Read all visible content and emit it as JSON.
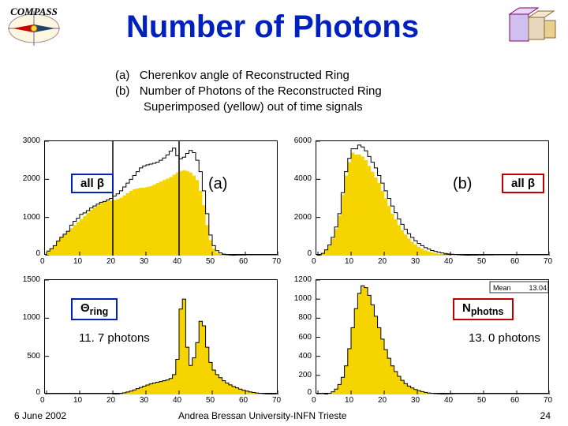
{
  "title": "Number of Photons",
  "logo_text": "COMPASS",
  "description": {
    "a": "Cherenkov angle of Reconstructed Ring",
    "b": "Number of Photons of the Reconstructed Ring",
    "c": "Superimposed (yellow) out of time signals"
  },
  "labels": {
    "all_beta_left": "all β",
    "all_beta_right": "all β",
    "panel_a": "(a)",
    "panel_b": "(b)",
    "theta_ring": "Θ<sub>ring</sub>",
    "n_photns": "N<sub>photns</sub>",
    "photons_left": "11. 7 photons",
    "photons_right": "13. 0 photons",
    "statbox_mean_label": "Mean",
    "statbox_mean_value": "13.04"
  },
  "footer": {
    "date": "6 June 2002",
    "author": "Andrea Bressan University-INFN Trieste",
    "page": "24"
  },
  "colors": {
    "title": "#0020c0",
    "box_blue": "#0020c0",
    "box_red": "#c00000",
    "hist_fill": "#f5d400",
    "hist_line": "#000000",
    "axis": "#000000",
    "bg": "#ffffff"
  },
  "hist_a_top": {
    "type": "histogram",
    "xlim": [
      0,
      70
    ],
    "ylim": [
      0,
      3000
    ],
    "xtick_step": 10,
    "ytick_step": 1000,
    "yellow_vals": [
      120,
      180,
      260,
      380,
      480,
      560,
      640,
      720,
      800,
      880,
      960,
      1040,
      1120,
      1200,
      1260,
      1320,
      1380,
      1420,
      1440,
      1440,
      1460,
      1480,
      1520,
      1580,
      1640,
      1700,
      1740,
      1760,
      1780,
      1780,
      1800,
      1820,
      1860,
      1900,
      1940,
      1980,
      2020,
      2060,
      2120,
      2180,
      2220,
      2240,
      2220,
      2180,
      2100,
      1980,
      1700,
      1320,
      800,
      400,
      180,
      80,
      40,
      20,
      10,
      6,
      4,
      2,
      1,
      0,
      0,
      0,
      0,
      0,
      0,
      0,
      0,
      0,
      0,
      0
    ],
    "line_vals": [
      120,
      180,
      260,
      380,
      480,
      560,
      640,
      800,
      900,
      980,
      1080,
      1120,
      1180,
      1250,
      1300,
      1350,
      1400,
      1420,
      1460,
      1500,
      1560,
      1620,
      1700,
      1800,
      1900,
      2000,
      2100,
      2200,
      2300,
      2350,
      2380,
      2400,
      2420,
      2450,
      2500,
      2560,
      2640,
      2740,
      2820,
      2620,
      2540,
      2580,
      2680,
      2760,
      2700,
      2500,
      2200,
      1700,
      1100,
      540,
      260,
      130,
      70,
      40,
      24,
      16,
      10,
      6,
      4,
      2,
      1,
      0,
      0,
      0,
      0,
      0,
      0,
      0,
      0,
      0
    ],
    "vlines": [
      20,
      40
    ]
  },
  "hist_b_top": {
    "type": "histogram",
    "xlim": [
      0,
      70
    ],
    "ylim": [
      0,
      6000
    ],
    "xtick_step": 10,
    "ytick_step": 2000,
    "yellow_vals": [
      40,
      120,
      280,
      520,
      900,
      1400,
      2100,
      3200,
      4200,
      4900,
      5400,
      5300,
      5300,
      5200,
      5000,
      4700,
      4400,
      4100,
      3800,
      3400,
      3000,
      2600,
      2200,
      1900,
      1600,
      1340,
      1100,
      900,
      720,
      580,
      460,
      360,
      280,
      220,
      170,
      130,
      100,
      76,
      58,
      44,
      34,
      26,
      20,
      15,
      11,
      8,
      6,
      4,
      3,
      2,
      1,
      1,
      0,
      0,
      0,
      0,
      0,
      0,
      0,
      0,
      0,
      0,
      0,
      0,
      0,
      0,
      0,
      0,
      0,
      0
    ],
    "line_vals": [
      40,
      120,
      300,
      560,
      960,
      1500,
      2200,
      3300,
      4400,
      5100,
      5600,
      5600,
      5800,
      5700,
      5500,
      5200,
      4900,
      4600,
      4200,
      3800,
      3400,
      3000,
      2600,
      2250,
      1920,
      1640,
      1380,
      1150,
      950,
      780,
      640,
      520,
      420,
      340,
      270,
      220,
      175,
      140,
      112,
      90,
      72,
      58,
      46,
      36,
      28,
      22,
      17,
      13,
      10,
      8,
      6,
      4,
      3,
      2,
      1,
      1,
      0,
      0,
      0,
      0,
      0,
      0,
      0,
      0,
      0,
      0,
      0,
      0,
      0,
      0
    ]
  },
  "hist_a_bot": {
    "type": "histogram",
    "xlim": [
      0,
      70
    ],
    "ylim": [
      0,
      1500
    ],
    "xtick_step": 10,
    "ytick_step": 500,
    "yellow_vals": [
      0,
      0,
      0,
      0,
      0,
      0,
      0,
      0,
      0,
      0,
      0,
      0,
      0,
      0,
      0,
      0,
      0,
      0,
      0,
      0,
      4,
      8,
      14,
      22,
      32,
      44,
      60,
      76,
      92,
      108,
      124,
      138,
      150,
      160,
      170,
      180,
      190,
      210,
      260,
      460,
      1120,
      1250,
      620,
      380,
      480,
      680,
      960,
      900,
      620,
      420,
      320,
      260,
      220,
      180,
      150,
      126,
      104,
      86,
      70,
      56,
      44,
      34,
      26,
      20,
      15,
      11,
      8,
      6,
      4,
      2
    ],
    "line_vals": [
      0,
      0,
      0,
      0,
      0,
      0,
      0,
      0,
      0,
      0,
      0,
      0,
      0,
      0,
      0,
      0,
      0,
      0,
      0,
      0,
      4,
      8,
      14,
      22,
      32,
      44,
      60,
      76,
      92,
      108,
      124,
      138,
      150,
      160,
      170,
      180,
      190,
      210,
      260,
      460,
      1120,
      1250,
      620,
      380,
      480,
      680,
      960,
      900,
      620,
      420,
      320,
      260,
      220,
      180,
      150,
      126,
      104,
      86,
      70,
      56,
      44,
      34,
      26,
      20,
      15,
      11,
      8,
      6,
      4,
      2
    ]
  },
  "hist_b_bot": {
    "type": "histogram",
    "xlim": [
      0,
      70
    ],
    "ylim": [
      0,
      1200
    ],
    "xtick_step": 10,
    "ytick_step": 200,
    "yellow_vals": [
      0,
      0,
      4,
      12,
      28,
      56,
      104,
      180,
      300,
      480,
      700,
      900,
      1060,
      1140,
      1120,
      1040,
      940,
      820,
      700,
      580,
      470,
      380,
      300,
      240,
      190,
      148,
      114,
      88,
      68,
      52,
      40,
      30,
      22,
      16,
      12,
      9,
      7,
      5,
      3,
      2,
      1,
      0,
      0,
      0,
      0,
      0,
      0,
      0,
      0,
      0,
      0,
      0,
      0,
      0,
      0,
      0,
      0,
      0,
      0,
      0,
      0,
      0,
      0,
      0,
      0,
      0,
      0,
      0,
      0,
      0
    ],
    "line_vals": [
      0,
      0,
      4,
      12,
      28,
      56,
      104,
      180,
      300,
      480,
      700,
      900,
      1060,
      1140,
      1120,
      1040,
      940,
      820,
      700,
      580,
      470,
      380,
      300,
      240,
      190,
      148,
      114,
      88,
      68,
      52,
      40,
      30,
      22,
      16,
      12,
      9,
      7,
      5,
      3,
      2,
      1,
      0,
      0,
      0,
      0,
      0,
      0,
      0,
      0,
      0,
      0,
      0,
      0,
      0,
      0,
      0,
      0,
      0,
      0,
      0,
      0,
      0,
      0,
      0,
      0,
      0,
      0,
      0,
      0,
      0
    ]
  }
}
